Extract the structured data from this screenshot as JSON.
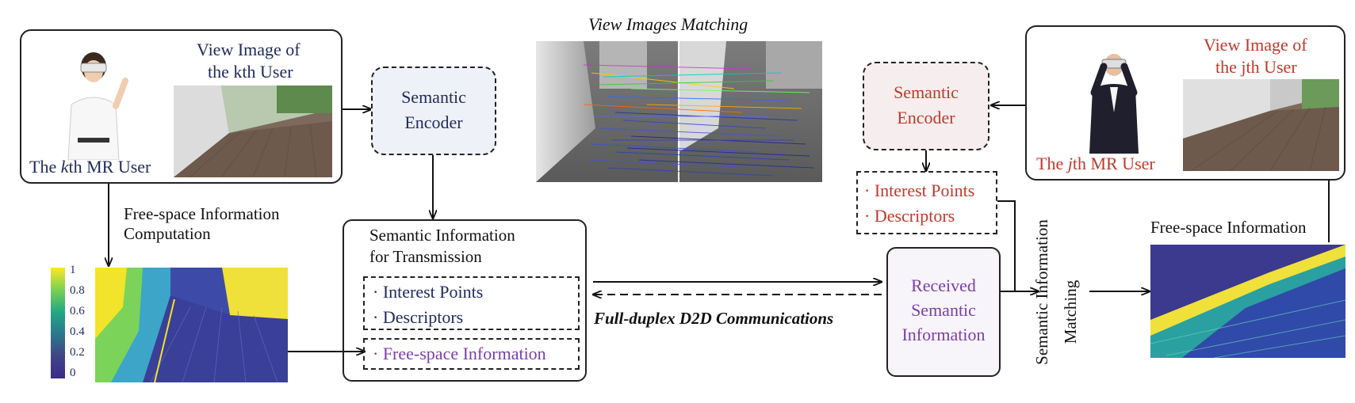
{
  "view_matching": {
    "title": "View Images Matching"
  },
  "kth_user": {
    "view_title_line1": "View Image of",
    "view_title_line2": "the kth User",
    "user_label_pre": "The ",
    "user_label_italic": "k",
    "user_label_post": "th MR User"
  },
  "jth_user": {
    "view_title_line1": "View Image of",
    "view_title_line2": "the jth User",
    "user_label_pre": "The ",
    "user_label_italic": "j",
    "user_label_post": "th MR User"
  },
  "encoder_left": {
    "line1": "Semantic",
    "line2": "Encoder"
  },
  "encoder_right": {
    "line1": "Semantic",
    "line2": "Encoder"
  },
  "freespace_computation": {
    "line1": "Free-space Information",
    "line2": "Computation"
  },
  "colorbar": {
    "ticks": [
      "1",
      "0.8",
      "0.6",
      "0.4",
      "0.2",
      "0"
    ]
  },
  "transmission": {
    "title_line1": "Semantic Information",
    "title_line2": "for Transmission",
    "item1": "· Interest Points",
    "item2": "· Descriptors",
    "item3": "· Free-space Information"
  },
  "right_points": {
    "item1": "· Interest Points",
    "item2": "· Descriptors"
  },
  "d2d": {
    "label": "Full-duplex D2D Communications"
  },
  "received": {
    "line1": "Received",
    "line2": "Semantic",
    "line3": "Information"
  },
  "matching": {
    "line1": "Semantic Information",
    "line2": "Matching"
  },
  "freespace_output": {
    "title": "Free-space Information"
  }
}
